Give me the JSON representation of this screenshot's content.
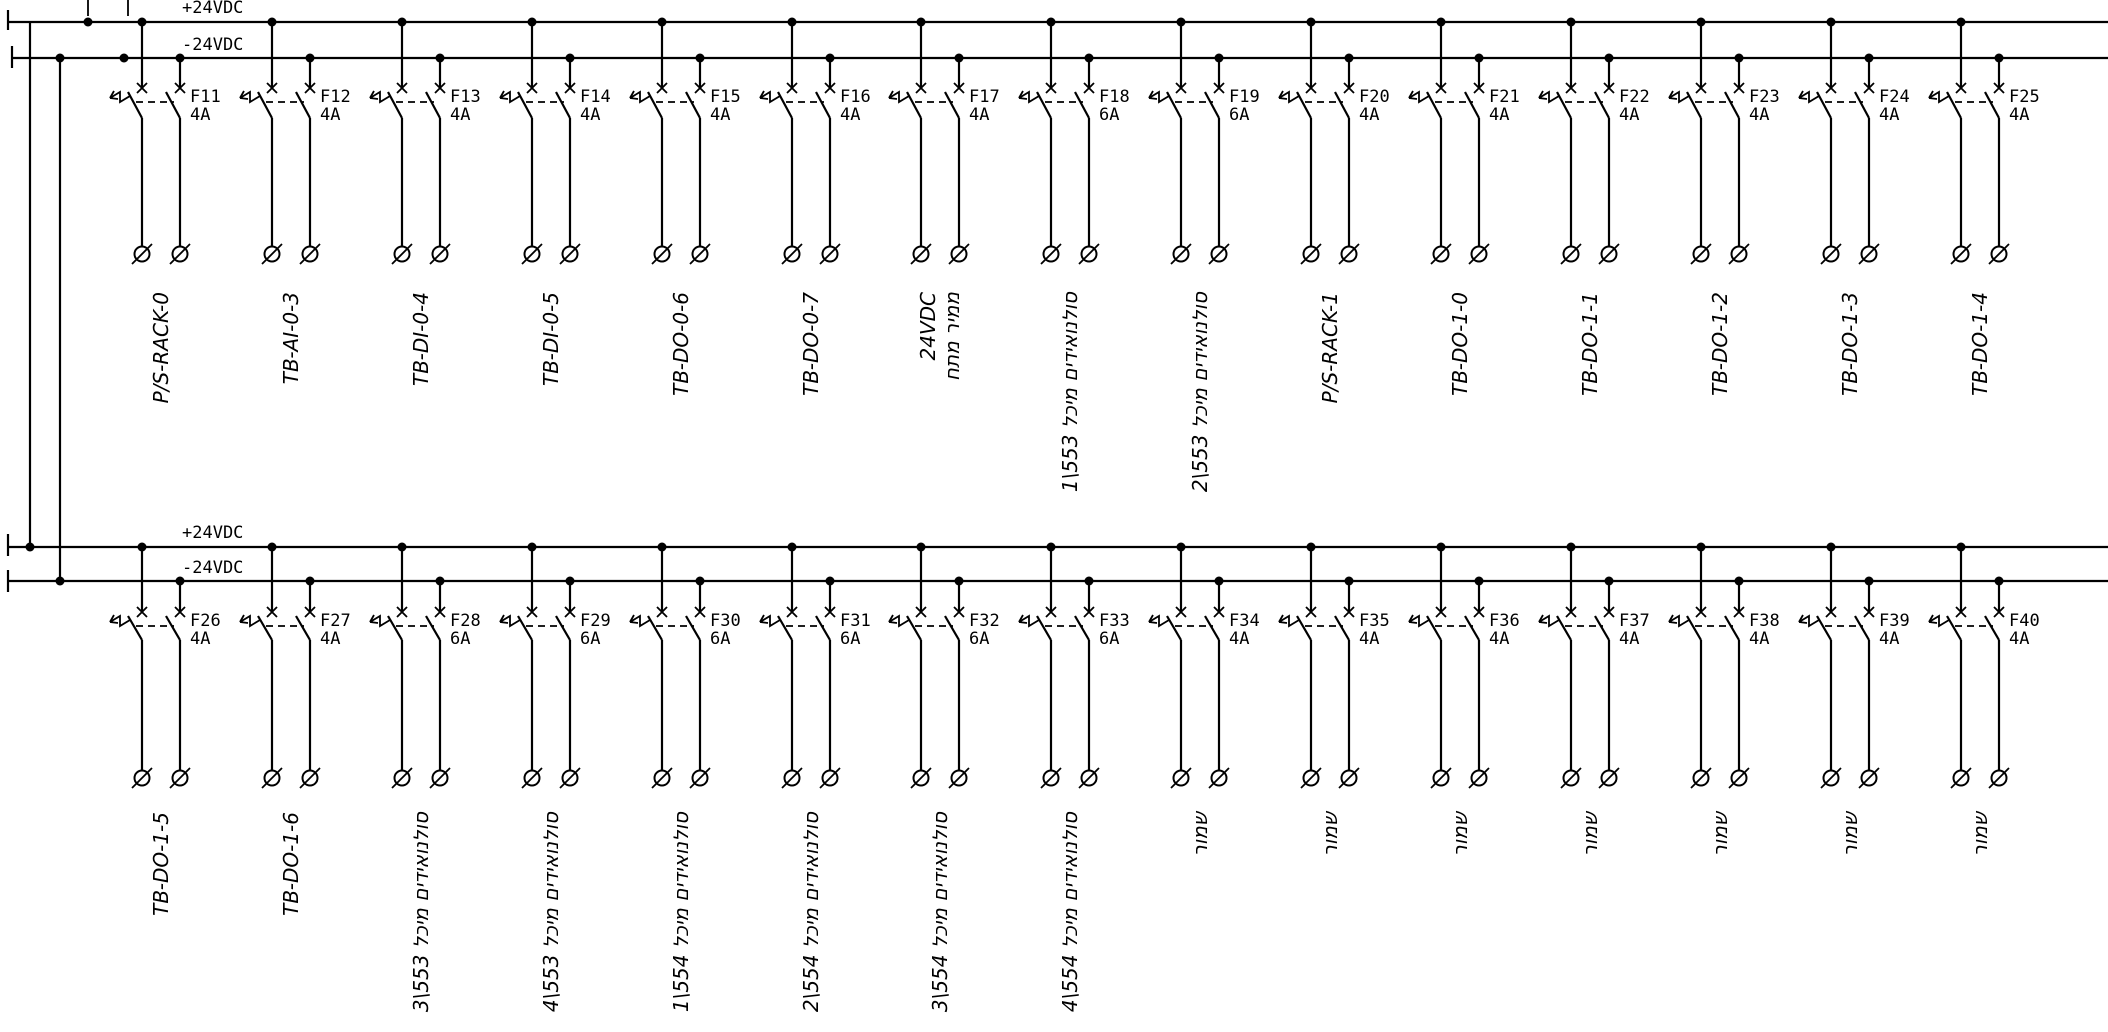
{
  "rails": {
    "top_pos": "+24VDC",
    "top_neg": "-24VDC",
    "bottom_pos": "+24VDC",
    "bottom_neg": "-24VDC"
  },
  "rows": [
    {
      "id": "top",
      "breakers": [
        {
          "fuse": "F11",
          "rating": "4A",
          "dest": [
            "P/S-RACK-0"
          ]
        },
        {
          "fuse": "F12",
          "rating": "4A",
          "dest": [
            "TB-AI-0-3"
          ]
        },
        {
          "fuse": "F13",
          "rating": "4A",
          "dest": [
            "TB-DI-0-4"
          ]
        },
        {
          "fuse": "F14",
          "rating": "4A",
          "dest": [
            "TB-DI-0-5"
          ]
        },
        {
          "fuse": "F15",
          "rating": "4A",
          "dest": [
            "TB-DO-0-6"
          ]
        },
        {
          "fuse": "F16",
          "rating": "4A",
          "dest": [
            "TB-DO-0-7"
          ]
        },
        {
          "fuse": "F17",
          "rating": "4A",
          "dest": [
            "24VDC",
            "ממיר מתח"
          ]
        },
        {
          "fuse": "F18",
          "rating": "6A",
          "dest": [
            "סולנואידים מיכל 553\\1"
          ]
        },
        {
          "fuse": "F19",
          "rating": "6A",
          "dest": [
            "סולנואידים מיכל 553\\2"
          ]
        },
        {
          "fuse": "F20",
          "rating": "4A",
          "dest": [
            "P/S-RACK-1"
          ]
        },
        {
          "fuse": "F21",
          "rating": "4A",
          "dest": [
            "TB-DO-1-0"
          ]
        },
        {
          "fuse": "F22",
          "rating": "4A",
          "dest": [
            "TB-DO-1-1"
          ]
        },
        {
          "fuse": "F23",
          "rating": "4A",
          "dest": [
            "TB-DO-1-2"
          ]
        },
        {
          "fuse": "F24",
          "rating": "4A",
          "dest": [
            "TB-DO-1-3"
          ]
        },
        {
          "fuse": "F25",
          "rating": "4A",
          "dest": [
            "TB-DO-1-4"
          ]
        }
      ]
    },
    {
      "id": "bottom",
      "breakers": [
        {
          "fuse": "F26",
          "rating": "4A",
          "dest": [
            "TB-DO-1-5"
          ]
        },
        {
          "fuse": "F27",
          "rating": "4A",
          "dest": [
            "TB-DO-1-6"
          ]
        },
        {
          "fuse": "F28",
          "rating": "6A",
          "dest": [
            "סולנואידים מיכל 553\\3"
          ]
        },
        {
          "fuse": "F29",
          "rating": "6A",
          "dest": [
            "סולנואידים מיכל 553\\4"
          ]
        },
        {
          "fuse": "F30",
          "rating": "6A",
          "dest": [
            "סולנואידים מיכל 554\\1"
          ]
        },
        {
          "fuse": "F31",
          "rating": "6A",
          "dest": [
            "סולנואידים מיכל 554\\2"
          ]
        },
        {
          "fuse": "F32",
          "rating": "6A",
          "dest": [
            "סולנואידים מיכל 554\\3"
          ]
        },
        {
          "fuse": "F33",
          "rating": "6A",
          "dest": [
            "סולנואידים מיכל 554\\4"
          ]
        },
        {
          "fuse": "F34",
          "rating": "4A",
          "dest": [
            "שמור"
          ]
        },
        {
          "fuse": "F35",
          "rating": "4A",
          "dest": [
            "שמור"
          ]
        },
        {
          "fuse": "F36",
          "rating": "4A",
          "dest": [
            "שמור"
          ]
        },
        {
          "fuse": "F37",
          "rating": "4A",
          "dest": [
            "שמור"
          ]
        },
        {
          "fuse": "F38",
          "rating": "4A",
          "dest": [
            "שמור"
          ]
        },
        {
          "fuse": "F39",
          "rating": "4A",
          "dest": [
            "שמור"
          ]
        },
        {
          "fuse": "F40",
          "rating": "4A",
          "dest": [
            "שמור"
          ]
        }
      ]
    }
  ]
}
